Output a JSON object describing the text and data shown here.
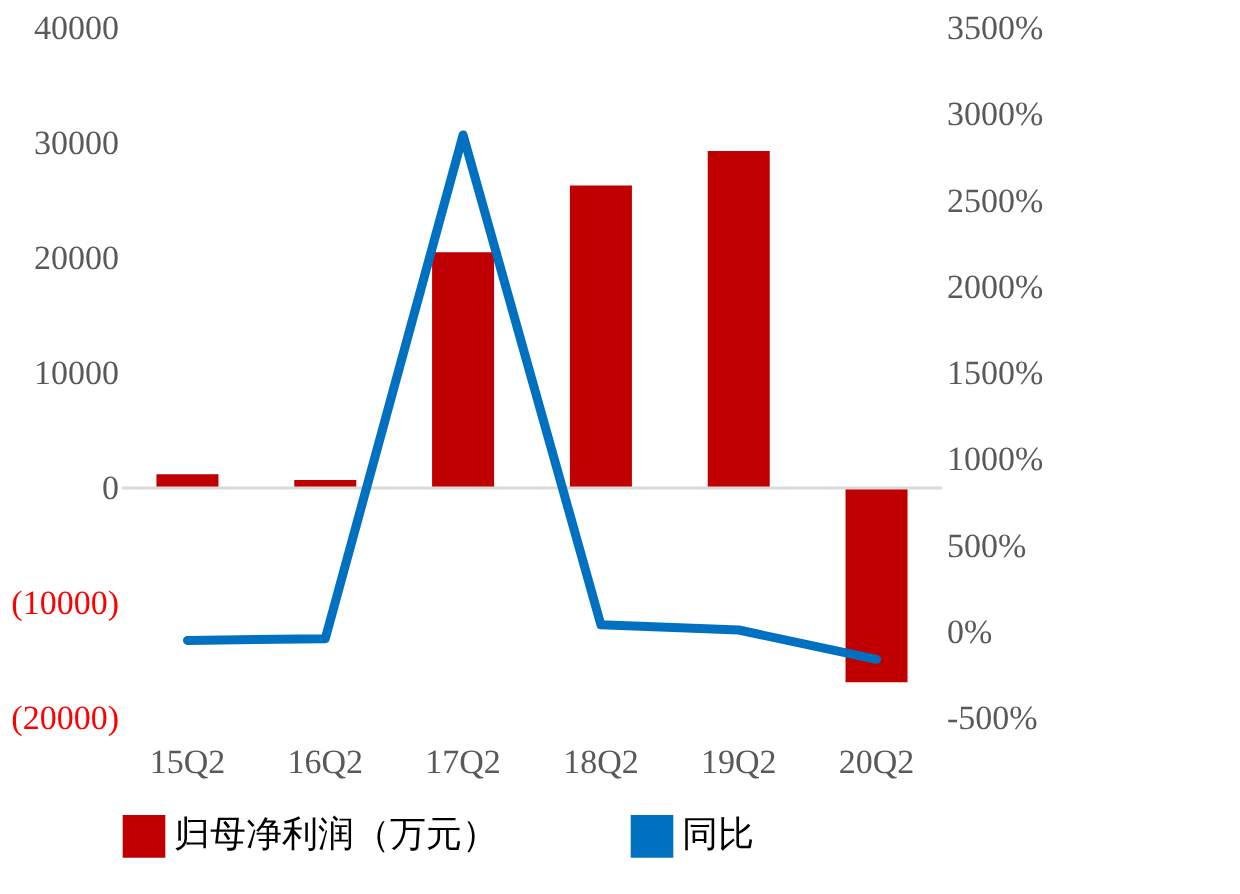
{
  "chart_data": {
    "type": "bar",
    "categories": [
      "15Q2",
      "16Q2",
      "17Q2",
      "18Q2",
      "19Q2",
      "20Q2"
    ],
    "series": [
      {
        "name": "归母净利润（万元）",
        "color": "#c00000",
        "values": [
          1200,
          700,
          20500,
          26300,
          29300,
          -16900
        ]
      },
      {
        "name": "同比",
        "type": "line",
        "axis": "y2",
        "color": "#0070c0",
        "values": [
          -50,
          -40,
          2880,
          40,
          10,
          -160
        ]
      }
    ],
    "ylim": [
      -20000,
      40000
    ],
    "yticks": [
      {
        "value": -20000,
        "label": "(20000)"
      },
      {
        "value": -10000,
        "label": "(10000)"
      },
      0,
      10000,
      20000,
      30000,
      40000
    ],
    "y2lim": [
      -500,
      3500
    ],
    "y2ticks": [
      {
        "value": -500,
        "label": "-500%"
      },
      {
        "value": 0,
        "label": "0%"
      },
      {
        "value": 500,
        "label": "500%"
      },
      {
        "value": 1000,
        "label": "1000%"
      },
      {
        "value": 1500,
        "label": "1500%"
      },
      {
        "value": 2000,
        "label": "2000%"
      },
      {
        "value": 2500,
        "label": "2500%"
      },
      {
        "value": 3000,
        "label": "3000%"
      },
      {
        "value": 3500,
        "label": "3500%"
      }
    ],
    "ref_lines": [
      {
        "axis": "y",
        "value": 0,
        "color": "#d9d9d9",
        "line_style": "solid"
      }
    ],
    "grid": false,
    "legend": "bottom",
    "marker": "none",
    "line_style": "solid"
  }
}
